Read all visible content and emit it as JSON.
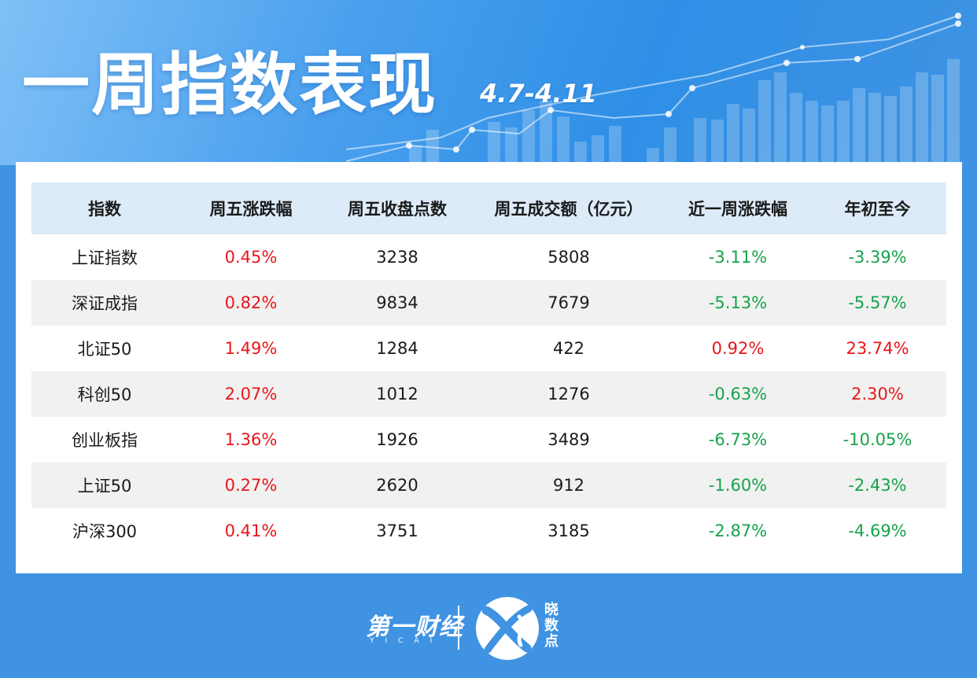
{
  "header": {
    "title": "一周指数表现",
    "date_range": "4.7-4.11"
  },
  "table": {
    "columns": [
      "指数",
      "周五涨跌幅",
      "周五收盘点数",
      "周五成交额（亿元）",
      "近一周涨跌幅",
      "年初至今"
    ],
    "rows": [
      {
        "name": "上证指数",
        "fri_change": "0.45%",
        "close": "3238",
        "turnover": "5808",
        "week_change": "-3.11%",
        "ytd": "-3.39%"
      },
      {
        "name": "深证成指",
        "fri_change": "0.82%",
        "close": "9834",
        "turnover": "7679",
        "week_change": "-5.13%",
        "ytd": "-5.57%"
      },
      {
        "name": "北证50",
        "fri_change": "1.49%",
        "close": "1284",
        "turnover": "422",
        "week_change": "0.92%",
        "ytd": "23.74%"
      },
      {
        "name": "科创50",
        "fri_change": "2.07%",
        "close": "1012",
        "turnover": "1276",
        "week_change": "-0.63%",
        "ytd": "2.30%"
      },
      {
        "name": "创业板指",
        "fri_change": "1.36%",
        "close": "1926",
        "turnover": "3489",
        "week_change": "-6.73%",
        "ytd": "-10.05%"
      },
      {
        "name": "上证50",
        "fri_change": "0.27%",
        "close": "2620",
        "turnover": "912",
        "week_change": "-1.60%",
        "ytd": "-2.43%"
      },
      {
        "name": "沪深300",
        "fri_change": "0.41%",
        "close": "3751",
        "turnover": "3185",
        "week_change": "-2.87%",
        "ytd": "-4.69%"
      }
    ]
  },
  "footer": {
    "brand_text": "第一财经",
    "brand_sub": "YICAI",
    "xsd_logo_text": "晓数点"
  },
  "colors": {
    "up": "#e8161a",
    "down": "#16a34a",
    "background": "#3f93e2",
    "header_row": "#dcebf7"
  }
}
